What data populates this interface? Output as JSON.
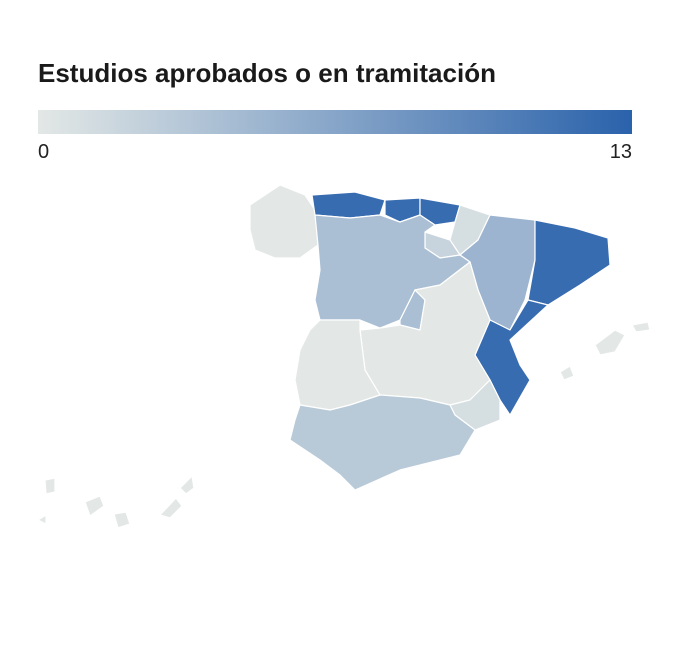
{
  "chart_data": {
    "type": "choropleth",
    "title": "Estudios aprobados o en tramitación",
    "scale_range": [
      0,
      13
    ],
    "scale_ticks": [
      0,
      13
    ],
    "colors": [
      "#e3e8e6",
      "#2a62ab"
    ],
    "values": [
      0,
      12,
      12,
      12,
      1,
      2,
      5,
      12,
      4,
      4,
      12,
      0,
      0,
      1,
      3,
      0,
      0
    ]
  }
}
